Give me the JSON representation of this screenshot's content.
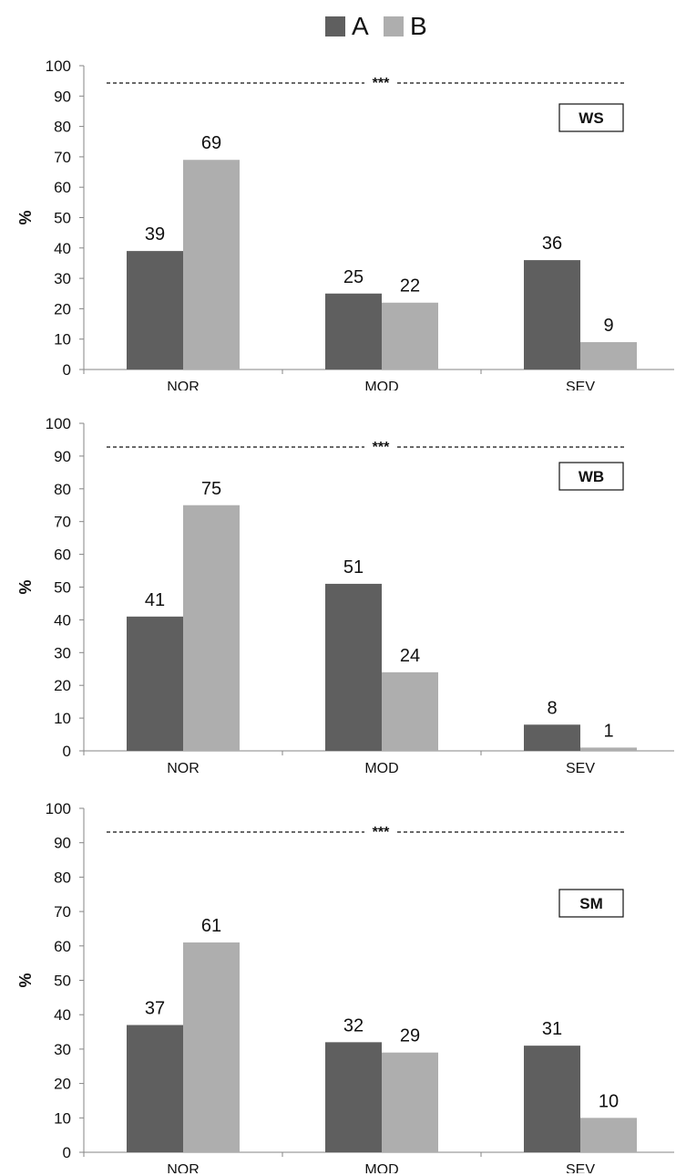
{
  "legend": [
    {
      "name": "A",
      "color": "#5f5f5f"
    },
    {
      "name": "B",
      "color": "#aeaeae"
    }
  ],
  "chart_data": [
    {
      "type": "bar",
      "panel_label": "WS",
      "significance": "***",
      "categories": [
        "NOR",
        "MOD",
        "SEV"
      ],
      "series": [
        {
          "name": "A",
          "color": "#5f5f5f",
          "values": [
            39,
            25,
            36
          ]
        },
        {
          "name": "B",
          "color": "#aeaeae",
          "values": [
            69,
            22,
            9
          ]
        }
      ],
      "ylabel": "%",
      "ylim": [
        0,
        100
      ],
      "yticks": [
        "0",
        "10",
        "20",
        "30",
        "40",
        "50",
        "60",
        "70",
        "80",
        "90",
        "100"
      ],
      "data_labels": true,
      "grid": false
    },
    {
      "type": "bar",
      "panel_label": "WB",
      "significance": "***",
      "categories": [
        "NOR",
        "MOD",
        "SEV"
      ],
      "series": [
        {
          "name": "A",
          "color": "#5f5f5f",
          "values": [
            41,
            51,
            8
          ]
        },
        {
          "name": "B",
          "color": "#aeaeae",
          "values": [
            75,
            24,
            1
          ]
        }
      ],
      "ylabel": "%",
      "ylim": [
        0,
        100
      ],
      "yticks": [
        "0",
        "10",
        "20",
        "30",
        "40",
        "50",
        "60",
        "70",
        "80",
        "90",
        "100"
      ],
      "data_labels": true,
      "grid": false
    },
    {
      "type": "bar",
      "panel_label": "SM",
      "significance": "***",
      "categories": [
        "NOR",
        "MOD",
        "SEV"
      ],
      "series": [
        {
          "name": "A",
          "color": "#5f5f5f",
          "values": [
            37,
            32,
            31
          ]
        },
        {
          "name": "B",
          "color": "#aeaeae",
          "values": [
            61,
            29,
            10
          ]
        }
      ],
      "ylabel": "%",
      "ylim": [
        0,
        100
      ],
      "yticks": [
        "0",
        "10",
        "20",
        "30",
        "40",
        "50",
        "60",
        "70",
        "80",
        "90",
        "100"
      ],
      "data_labels": true,
      "grid": false
    }
  ]
}
